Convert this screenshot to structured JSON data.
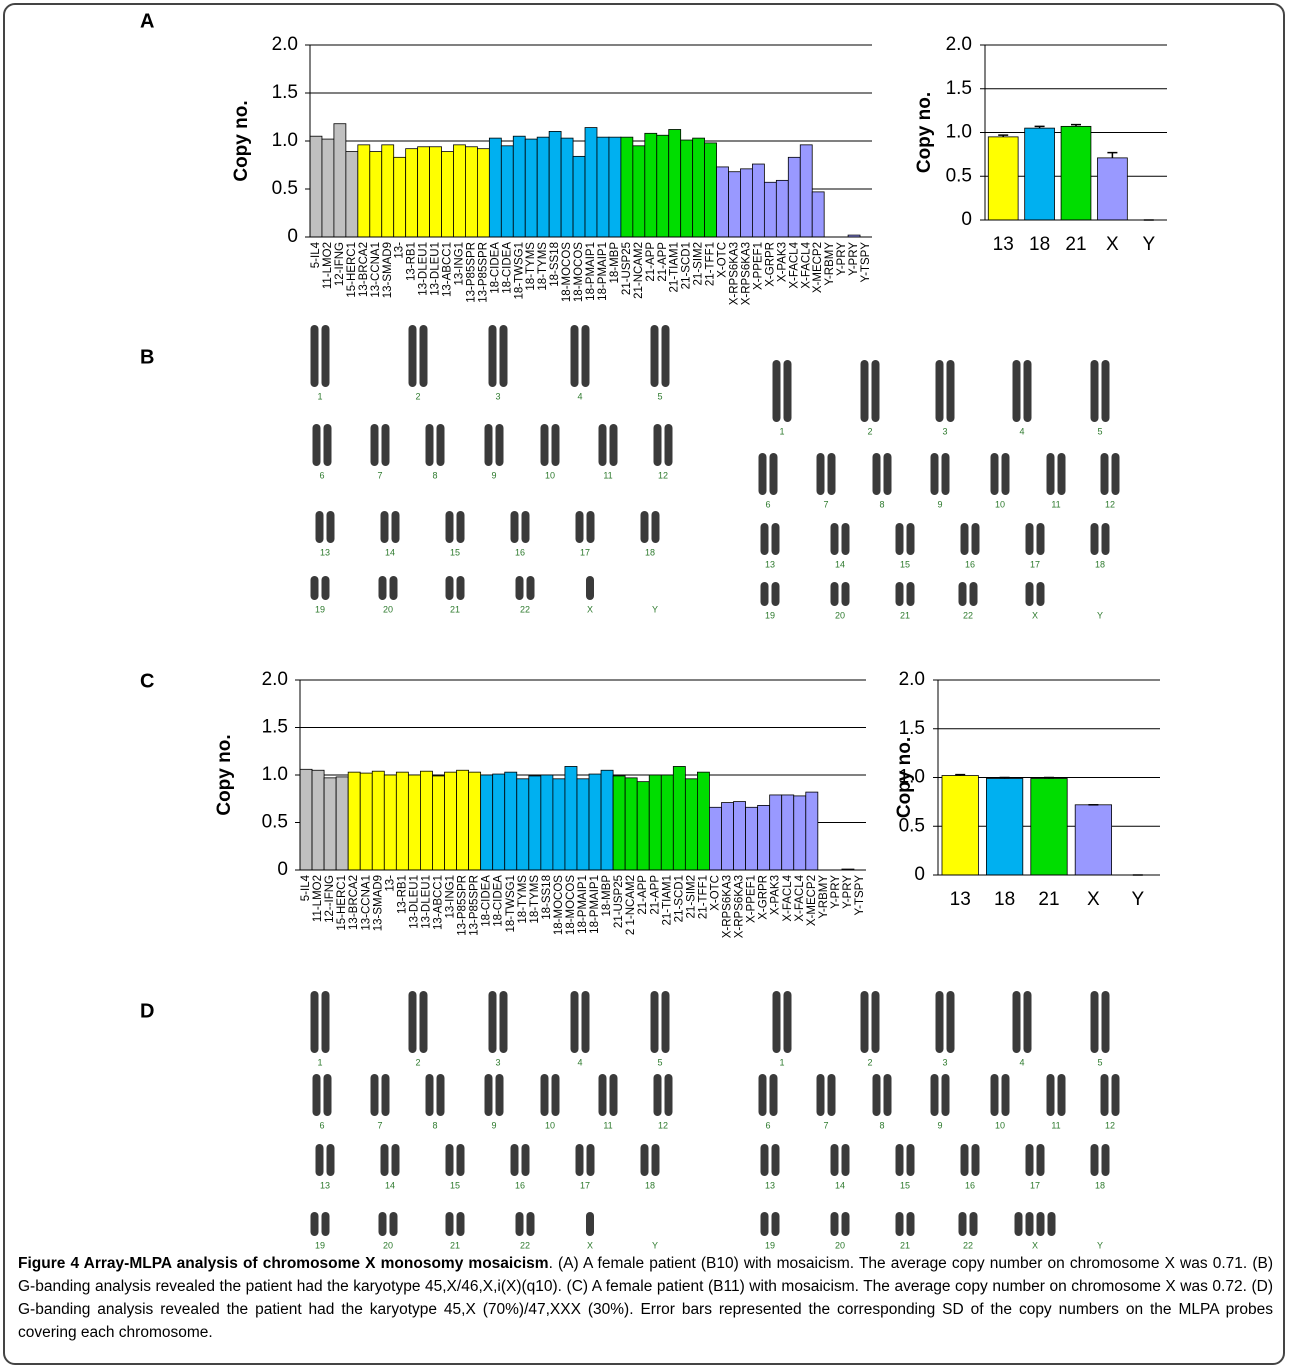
{
  "panel_labels": [
    "A",
    "B",
    "C",
    "D"
  ],
  "chart_data": [
    {
      "type": "bar",
      "y_label": "Copy no.",
      "categories": [
        "5-IL4",
        "11-LMO2",
        "12-IFNG",
        "15-HERC1",
        "13-BRCA2",
        "13-CCNA1",
        "13-SMAD9",
        "13-",
        "13-RB1",
        "13-DLEU1",
        "13-DLEU1",
        "13-ABCC1",
        "13-ING1",
        "13-P85SPR",
        "13-P85SPR",
        "18-CIDEA",
        "18-CIDEA",
        "18-TWSG1",
        "18-TYMS",
        "18-TYMS",
        "18-SS18",
        "18-MOCOS",
        "18-MOCOS",
        "18-PMAIP1",
        "18-PMAIP1",
        "18-MBP",
        "21-USP25",
        "21-NCAM2",
        "21-APP",
        "21-APP",
        "21-TIAM1",
        "21-SCD1",
        "21-SIM2",
        "21-TFF1",
        "X-OTC",
        "X-RPS6KA3",
        "X-RPS6KA3",
        "X-PPEF1",
        "X-GRPR",
        "X-PAK3",
        "X-FACL4",
        "X-FACL4",
        "X-MECP2",
        "Y-RBMY",
        "Y-PRY",
        "Y-PRY",
        "Y-TSPY"
      ],
      "values": [
        1.05,
        1.02,
        1.18,
        0.89,
        0.96,
        0.89,
        0.96,
        0.83,
        0.92,
        0.94,
        0.94,
        0.89,
        0.96,
        0.94,
        0.92,
        1.03,
        0.95,
        1.05,
        1.02,
        1.04,
        1.1,
        1.03,
        0.84,
        1.14,
        1.04,
        1.04,
        1.04,
        0.95,
        1.08,
        1.06,
        1.12,
        1.01,
        1.03,
        0.98,
        0.73,
        0.68,
        0.71,
        0.76,
        0.57,
        0.59,
        0.83,
        0.96,
        0.47,
        0,
        0,
        0.02,
        0
      ],
      "colors": [
        "#c0c0c0",
        "#c0c0c0",
        "#c0c0c0",
        "#c0c0c0",
        "#ffff00",
        "#ffff00",
        "#ffff00",
        "#ffff00",
        "#ffff00",
        "#ffff00",
        "#ffff00",
        "#ffff00",
        "#ffff00",
        "#ffff00",
        "#ffff00",
        "#00b0f0",
        "#00b0f0",
        "#00b0f0",
        "#00b0f0",
        "#00b0f0",
        "#00b0f0",
        "#00b0f0",
        "#00b0f0",
        "#00b0f0",
        "#00b0f0",
        "#00b0f0",
        "#00dd00",
        "#00dd00",
        "#00dd00",
        "#00dd00",
        "#00dd00",
        "#00dd00",
        "#00dd00",
        "#00dd00",
        "#9999ff",
        "#9999ff",
        "#9999ff",
        "#9999ff",
        "#9999ff",
        "#9999ff",
        "#9999ff",
        "#9999ff",
        "#9999ff",
        "#9999ff",
        "#9999ff",
        "#9999ff",
        "#9999ff"
      ],
      "ylim": [
        0,
        2
      ],
      "yticks": [
        0,
        {
          "value": 0.5,
          "label": "0.5"
        },
        {
          "value": 1,
          "label": "1.0"
        },
        {
          "value": 1.5,
          "label": "1.5"
        },
        {
          "value": 2,
          "label": "2.0"
        }
      ],
      "grid": true
    },
    {
      "type": "bar",
      "y_label": "Copy no.",
      "categories": [
        "13",
        "18",
        "21",
        "X",
        "Y"
      ],
      "values": [
        0.95,
        1.05,
        1.07,
        0.71,
        0
      ],
      "errors": [
        0.02,
        0.02,
        0.02,
        0.06,
        0
      ],
      "colors": [
        "#ffff00",
        "#00b0f0",
        "#00dd00",
        "#9999ff",
        "#9999ff"
      ],
      "ylim": [
        0,
        2
      ],
      "yticks": [
        0,
        {
          "value": 0.5,
          "label": "0.5"
        },
        {
          "value": 1,
          "label": "1.0"
        },
        {
          "value": 1.5,
          "label": "1.5"
        },
        {
          "value": 2,
          "label": "2.0"
        }
      ],
      "grid": true
    },
    {
      "type": "bar",
      "y_label": "Copy no.",
      "categories": [
        "5-IL4",
        "11-LMO2",
        "12--IFNG",
        "15-HERC1",
        "13-BRCA2",
        "13-CCNA1",
        "13-SMAD9",
        "13-",
        "13-RB1",
        "13-DLEU1",
        "13-DLEU1",
        "13-ABCC1",
        "13-ING1",
        "13-P85SPR",
        "13-P85SPR",
        "18-CIDEA",
        "18-CIDEA",
        "18-TWSG1",
        "18-TYMS",
        "18-TYMS",
        "18-SS18",
        "18-MOCOS",
        "18-MOCOS",
        "18-PMAIP1",
        "18-PMAIP1",
        "18-MBP",
        "21-USP25",
        "2 1-NCAM2",
        "21-APP",
        "21-APP",
        "21-TIAM1",
        "21-SCD1",
        "21-SIM2",
        "21-TFF1",
        "X-OTC",
        "X-RPS6KA3",
        "X-RPS6KA3",
        "X-PPEF1",
        "X-GRPR",
        "X-PAK3",
        "X-FACL4",
        "X-FACL4",
        "X-MECP2",
        "Y-RBMY",
        "Y-PRY",
        "Y-PRY",
        "Y-TSPY"
      ],
      "values": [
        1.06,
        1.05,
        0.97,
        0.98,
        1.03,
        1.02,
        1.04,
        1.0,
        1.03,
        1.0,
        1.04,
        0.99,
        1.03,
        1.05,
        1.03,
        1.0,
        1.01,
        1.03,
        0.96,
        0.99,
        1.0,
        0.96,
        1.09,
        0.96,
        1.01,
        1.05,
        0.99,
        0.97,
        0.93,
        1.0,
        1.0,
        1.09,
        0.96,
        1.03,
        0.66,
        0.71,
        0.72,
        0.66,
        0.68,
        0.79,
        0.79,
        0.78,
        0.82,
        0,
        0,
        0.01,
        0
      ],
      "colors": [
        "#c0c0c0",
        "#c0c0c0",
        "#c0c0c0",
        "#c0c0c0",
        "#ffff00",
        "#ffff00",
        "#ffff00",
        "#ffff00",
        "#ffff00",
        "#ffff00",
        "#ffff00",
        "#ffff00",
        "#ffff00",
        "#ffff00",
        "#ffff00",
        "#00b0f0",
        "#00b0f0",
        "#00b0f0",
        "#00b0f0",
        "#00b0f0",
        "#00b0f0",
        "#00b0f0",
        "#00b0f0",
        "#00b0f0",
        "#00b0f0",
        "#00b0f0",
        "#00dd00",
        "#00dd00",
        "#00dd00",
        "#00dd00",
        "#00dd00",
        "#00dd00",
        "#00dd00",
        "#00dd00",
        "#9999ff",
        "#9999ff",
        "#9999ff",
        "#9999ff",
        "#9999ff",
        "#9999ff",
        "#9999ff",
        "#9999ff",
        "#9999ff",
        "#9999ff",
        "#9999ff",
        "#9999ff",
        "#9999ff"
      ],
      "ylim": [
        0,
        2
      ],
      "yticks": [
        0,
        {
          "value": 0.5,
          "label": "0.5"
        },
        {
          "value": 1,
          "label": "1.0"
        },
        {
          "value": 1.5,
          "label": "1.5"
        },
        {
          "value": 2,
          "label": "2.0"
        }
      ],
      "grid": true
    },
    {
      "type": "bar",
      "y_label": "Copy no.",
      "categories": [
        "13",
        "18",
        "21",
        "X",
        "Y"
      ],
      "values": [
        1.02,
        0.99,
        0.99,
        0.72,
        0
      ],
      "errors": [
        0.01,
        0.01,
        0.01,
        0,
        0
      ],
      "colors": [
        "#ffff00",
        "#00b0f0",
        "#00dd00",
        "#9999ff",
        "#9999ff"
      ],
      "ylim": [
        0,
        2
      ],
      "yticks": [
        0,
        {
          "value": 0.5,
          "label": "0.5"
        },
        {
          "value": 1,
          "label": "1.0"
        },
        {
          "value": 1.5,
          "label": "1.5"
        },
        {
          "value": 2,
          "label": "2.0"
        }
      ],
      "grid": true
    }
  ],
  "karyotype_labels": [
    "1",
    "2",
    "3",
    "4",
    "5",
    "6",
    "7",
    "8",
    "9",
    "10",
    "11",
    "12",
    "13",
    "14",
    "15",
    "16",
    "17",
    "18",
    "19",
    "20",
    "21",
    "22",
    "X",
    "Y"
  ],
  "caption": {
    "title": "Figure 4 Array-MLPA analysis of chromosome X monosomy mosaicism",
    "text": ". (A) A female patient (B10) with mosaicism. The average copy number on chromosome X was 0.71. (B) G-banding analysis revealed the patient had the karyotype 45,X/46,X,i(X)(q10). (C) A female patient (B11) with mosaicism. The average copy number on chromosome X was 0.72. (D) G-banding analysis revealed the patient had the karyotype 45,X (70%)/47,XXX (30%). Error bars represented the corresponding SD of the copy numbers on the MLPA probes covering each chromosome."
  }
}
